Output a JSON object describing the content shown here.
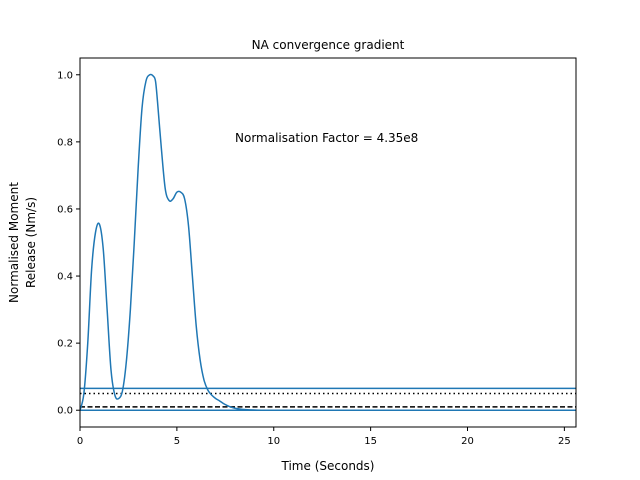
{
  "chart_data": {
    "type": "line",
    "title": "NA convergence gradient",
    "xlabel": "Time (Seconds)",
    "ylabel_lines": [
      "Normalised Moment",
      "Release (Nm/s)"
    ],
    "xlim": [
      0,
      25.6
    ],
    "ylim": [
      -0.05,
      1.05
    ],
    "x_ticks": [
      0,
      5,
      10,
      15,
      20,
      25
    ],
    "y_ticks": [
      0.0,
      0.2,
      0.4,
      0.6,
      0.8,
      1.0
    ],
    "x_tick_labels": [
      "0",
      "5",
      "10",
      "15",
      "20",
      "25"
    ],
    "y_tick_labels": [
      "0.0",
      "0.2",
      "0.4",
      "0.6",
      "0.8",
      "1.0"
    ],
    "annotation": "Normalisation Factor = 4.35e8",
    "grid": false,
    "series": [
      {
        "color": "#1f77b4",
        "x": [
          0,
          0.2,
          0.4,
          0.6,
          0.8,
          1.0,
          1.2,
          1.4,
          1.6,
          1.8,
          2.0,
          2.2,
          2.4,
          2.6,
          2.8,
          3.0,
          3.2,
          3.4,
          3.6,
          3.8,
          3.9,
          4.0,
          4.2,
          4.4,
          4.6,
          4.8,
          5.0,
          5.2,
          5.4,
          5.6,
          5.8,
          6.0,
          6.2,
          6.4,
          6.6,
          6.8,
          7.0,
          7.2,
          7.4,
          7.6,
          7.8,
          8.0,
          8.2,
          8.5,
          9.0,
          10.0,
          15.0,
          20.0,
          25.6
        ],
        "y": [
          0.0,
          0.05,
          0.2,
          0.42,
          0.53,
          0.555,
          0.48,
          0.3,
          0.12,
          0.045,
          0.035,
          0.06,
          0.15,
          0.3,
          0.5,
          0.72,
          0.9,
          0.98,
          1.0,
          0.995,
          0.98,
          0.92,
          0.78,
          0.66,
          0.625,
          0.63,
          0.65,
          0.65,
          0.63,
          0.55,
          0.4,
          0.25,
          0.15,
          0.09,
          0.06,
          0.045,
          0.035,
          0.028,
          0.02,
          0.014,
          0.009,
          0.006,
          0.004,
          0.002,
          0.0005,
          0.0,
          0.0,
          0.0,
          0.0
        ]
      }
    ],
    "hlines": [
      {
        "y": 0.065,
        "color": "#1f77b4",
        "style": "solid"
      },
      {
        "y": 0.05,
        "color": "#000000",
        "style": "dotted"
      },
      {
        "y": 0.01,
        "color": "#000000",
        "style": "dashed"
      },
      {
        "y": 0.0,
        "color": "#1f77b4",
        "style": "solid"
      }
    ]
  }
}
